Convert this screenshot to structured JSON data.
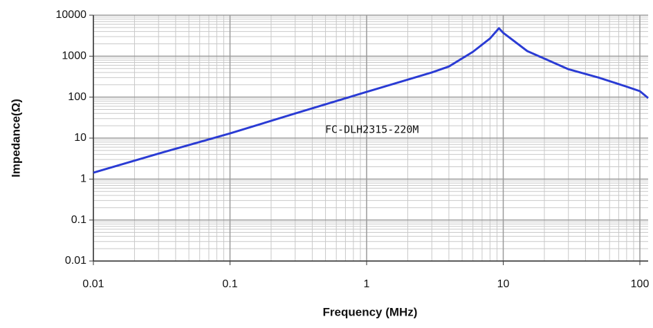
{
  "chart_data": {
    "type": "line",
    "xlabel": "Frequency (MHz)",
    "ylabel": "Impedance(Ω)",
    "annotation": "FC-DLH2315-220M",
    "x": [
      0.01,
      0.03,
      0.1,
      0.3,
      1,
      3,
      4,
      6,
      8,
      9.3,
      10,
      15,
      20,
      30,
      50,
      80,
      100,
      115
    ],
    "series": [
      {
        "color": "#2a3bd4",
        "values": [
          1.43,
          4.2,
          13,
          40,
          134,
          400,
          560,
          1280,
          2700,
          4800,
          3700,
          1330,
          870,
          480,
          300,
          180,
          140,
          95
        ]
      }
    ],
    "xlim": [
      0.01,
      115
    ],
    "ylim": [
      0.01,
      10000
    ],
    "xticks": [
      0.01,
      0.1,
      1,
      10,
      100
    ],
    "yticks": [
      10000,
      1000,
      100,
      10,
      1,
      0.1,
      0.01
    ],
    "xscale": "log",
    "yscale": "log",
    "grid": true,
    "minor_grid": true
  }
}
